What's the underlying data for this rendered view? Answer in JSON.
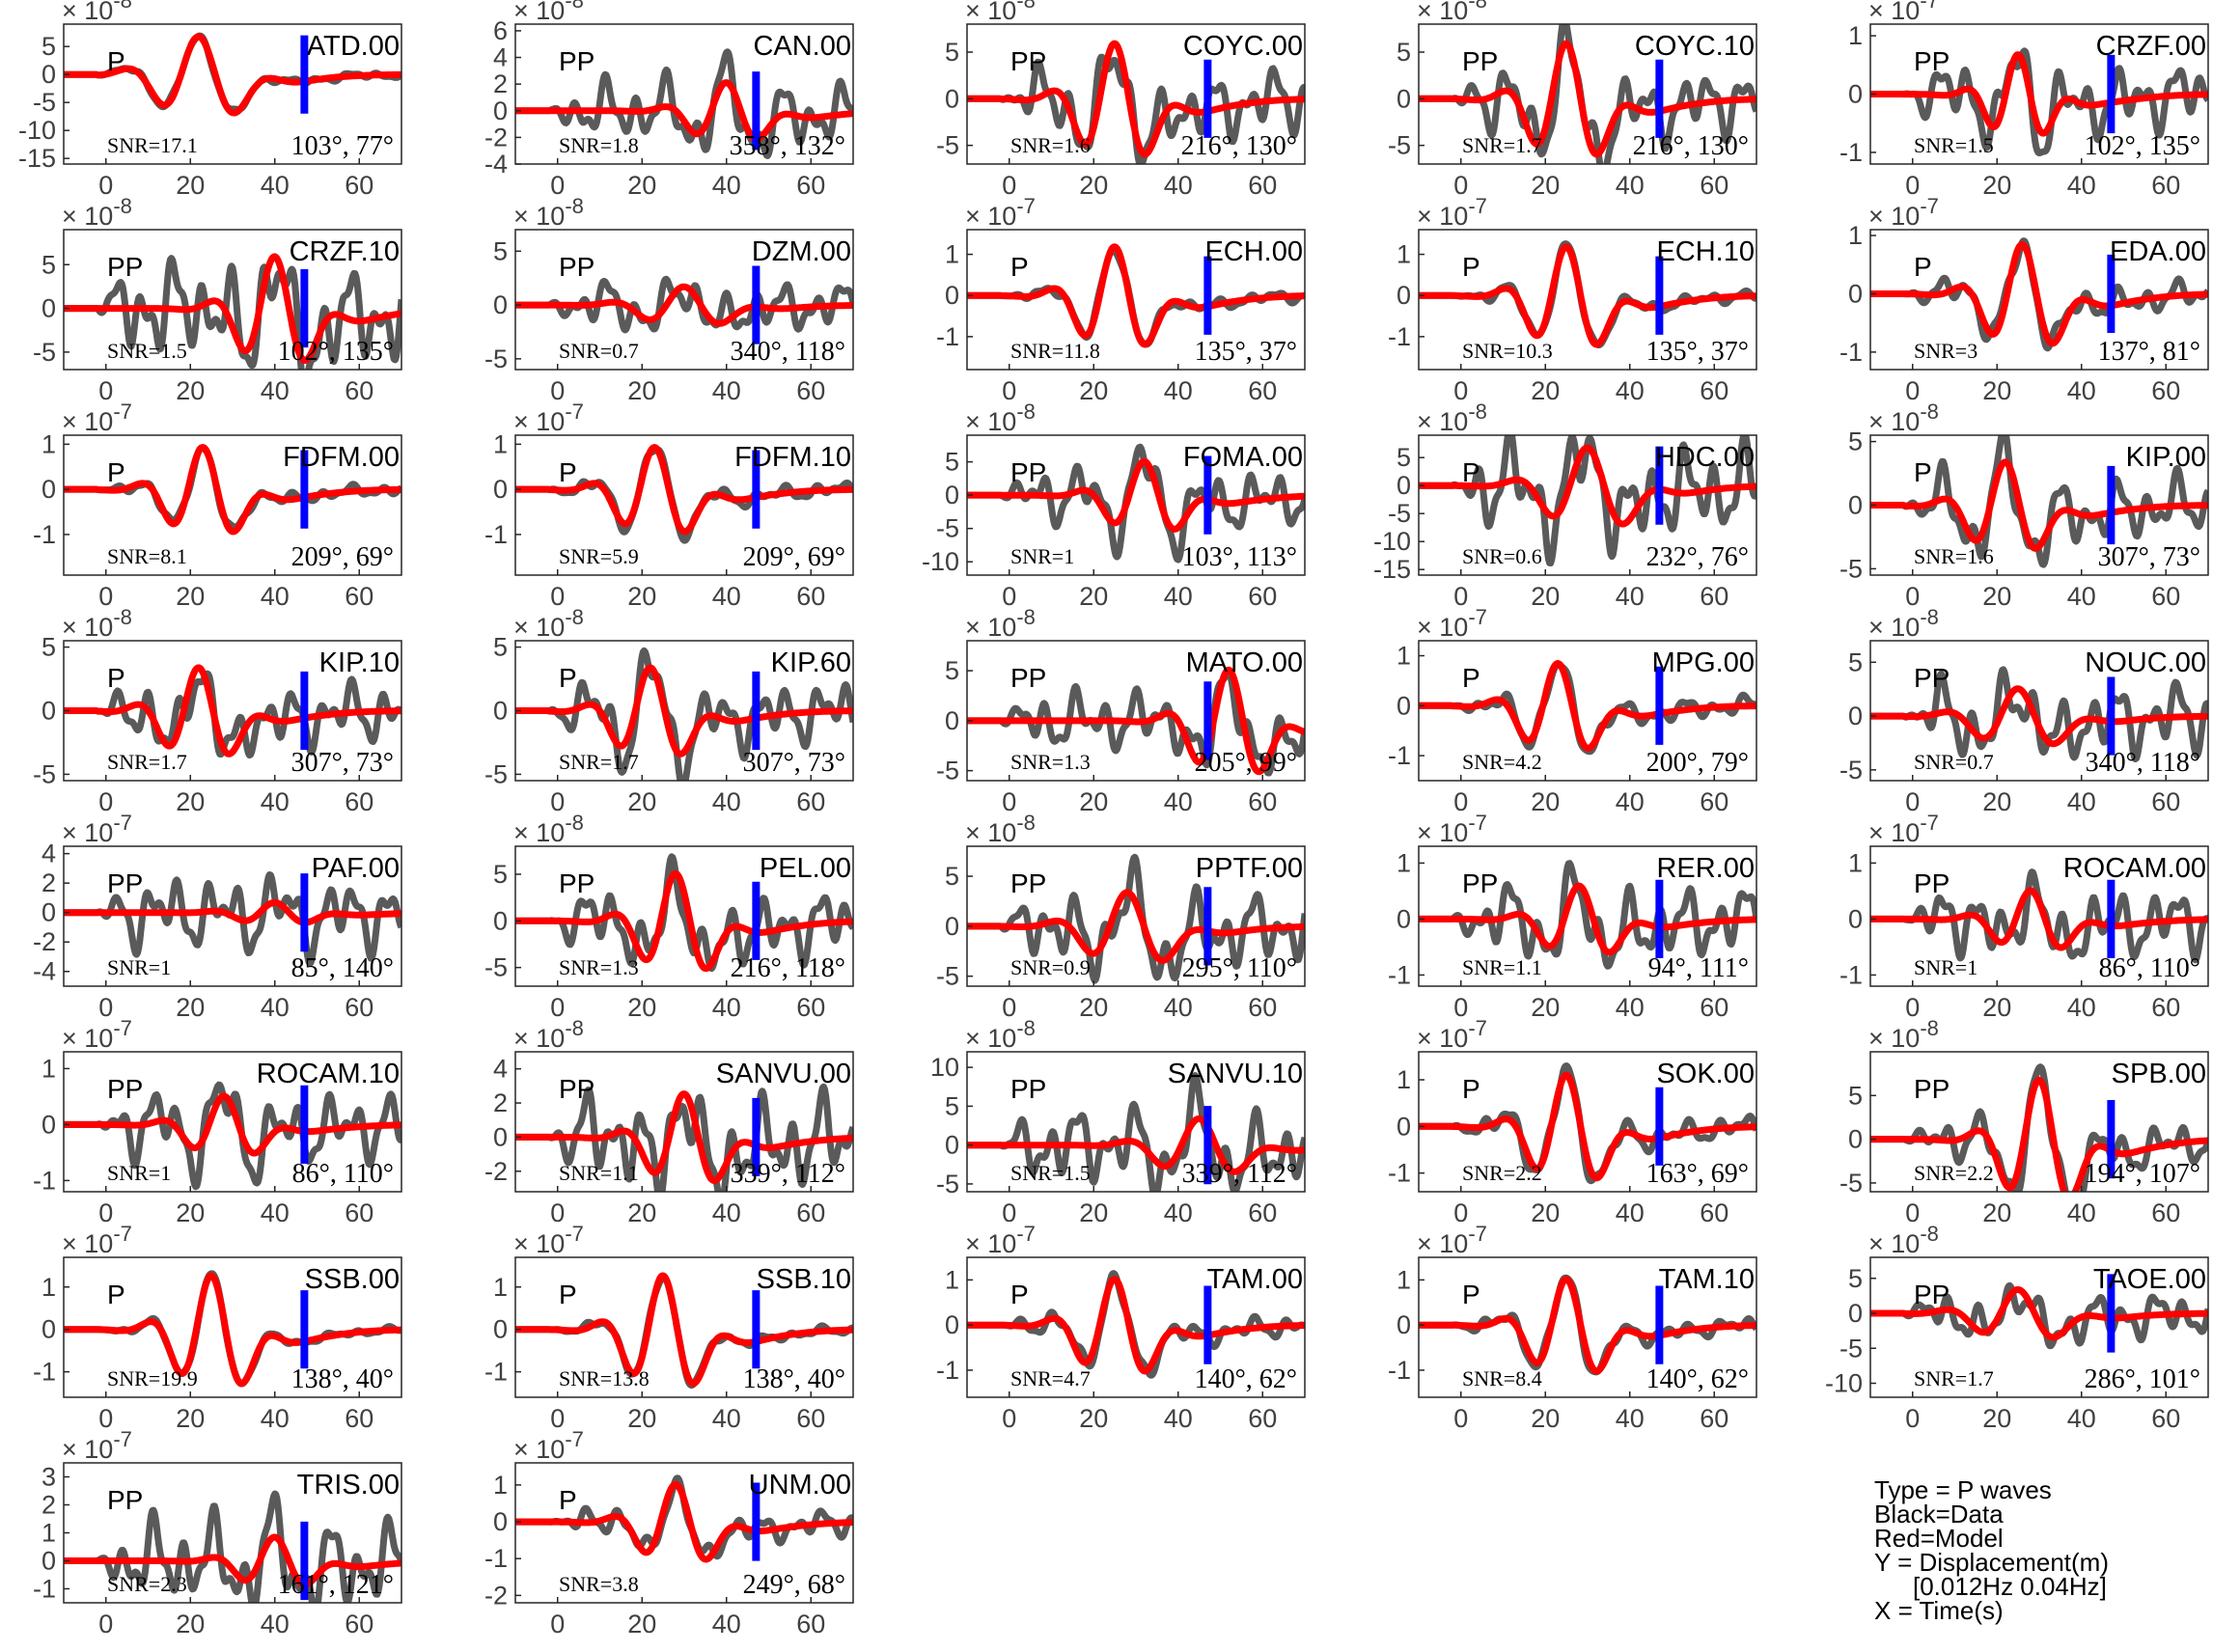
{
  "colors": {
    "data": "#5a5a5a",
    "model": "#ff0000",
    "marker": "#0000ff",
    "axis": "#262626",
    "text": "#000000"
  },
  "legend_note": {
    "type": "Type = P waves",
    "black": "Black=Data",
    "red": "Red=Model",
    "y": "Y = Displacement(m)",
    "band": "[0.012Hz 0.04Hz]",
    "x": "X = Time(s)"
  },
  "chart_data": {
    "type": "line",
    "xlim": [
      -10,
      70
    ],
    "xticks": [
      0,
      20,
      40,
      60
    ],
    "xtick_labels": [
      "0",
      "20",
      "40",
      "60"
    ],
    "series_names": [
      "Black=Data",
      "Red=Model"
    ],
    "marker_time": 47,
    "panels": [
      {
        "station": "ATD.00",
        "phase": "P",
        "snr": "SNR=17.1",
        "azimuth": "103°, 77°",
        "exp": "-8",
        "yticks": [
          5,
          0,
          -5,
          -10,
          -15
        ],
        "ylim": [
          -16,
          9
        ],
        "amp": 8,
        "tpk": 22,
        "tw": 7,
        "noise": 0.08
      },
      {
        "station": "CAN.00",
        "phase": "PP",
        "snr": "SNR=1.8",
        "azimuth": "358°, 132°",
        "exp": "-8",
        "yticks": [
          6,
          4,
          2,
          0,
          -2,
          -4
        ],
        "ylim": [
          -4,
          6.5
        ],
        "amp": 2.5,
        "tpk": 40,
        "tw": 6,
        "noise": 0.9
      },
      {
        "station": "COYC.00",
        "phase": "PP",
        "snr": "SNR=1.6",
        "azimuth": "216°, 130°",
        "exp": "-8",
        "yticks": [
          5,
          0,
          -5
        ],
        "ylim": [
          -7,
          8
        ],
        "amp": 7,
        "tpk": 25,
        "tw": 6,
        "noise": 0.5
      },
      {
        "station": "COYC.10",
        "phase": "PP",
        "snr": "SNR=1.7",
        "azimuth": "216°, 130°",
        "exp": "-8",
        "yticks": [
          5,
          0,
          -5
        ],
        "ylim": [
          -7,
          8
        ],
        "amp": 7,
        "tpk": 25,
        "tw": 6,
        "noise": 0.5
      },
      {
        "station": "CRZF.00",
        "phase": "PP",
        "snr": "SNR=1.5",
        "azimuth": "102°, 135°",
        "exp": "-7",
        "yticks": [
          1,
          0,
          -1
        ],
        "ylim": [
          -1.2,
          1.2
        ],
        "amp": 0.8,
        "tpk": 25,
        "tw": 5,
        "noise": 0.7
      },
      {
        "station": "CRZF.10",
        "phase": "PP",
        "snr": "SNR=1.5",
        "azimuth": "102°, 135°",
        "exp": "-8",
        "yticks": [
          5,
          0,
          -5
        ],
        "ylim": [
          -7,
          9
        ],
        "amp": 7,
        "tpk": 40,
        "tw": 6,
        "noise": 0.8
      },
      {
        "station": "DZM.00",
        "phase": "PP",
        "snr": "SNR=0.7",
        "azimuth": "340°, 118°",
        "exp": "-8",
        "yticks": [
          5,
          0,
          -5
        ],
        "ylim": [
          -6,
          7
        ],
        "amp": 2,
        "tpk": 30,
        "tw": 7,
        "noise": 1.1
      },
      {
        "station": "ECH.00",
        "phase": "P",
        "snr": "SNR=11.8",
        "azimuth": "135°, 37°",
        "exp": "-7",
        "yticks": [
          1,
          0,
          -1
        ],
        "ylim": [
          -1.8,
          1.6
        ],
        "amp": 1.4,
        "tpk": 25,
        "tw": 6,
        "noise": 0.1
      },
      {
        "station": "ECH.10",
        "phase": "P",
        "snr": "SNR=10.3",
        "azimuth": "135°, 37°",
        "exp": "-7",
        "yticks": [
          1,
          0,
          -1
        ],
        "ylim": [
          -1.8,
          1.6
        ],
        "amp": 1.4,
        "tpk": 25,
        "tw": 6,
        "noise": 0.1
      },
      {
        "station": "EDA.00",
        "phase": "P",
        "snr": "SNR=3",
        "azimuth": "137°, 81°",
        "exp": "-7",
        "yticks": [
          1,
          0,
          -1
        ],
        "ylim": [
          -1.3,
          1.1
        ],
        "amp": 1,
        "tpk": 26,
        "tw": 6,
        "noise": 0.25
      },
      {
        "station": "FDFM.00",
        "phase": "P",
        "snr": "SNR=8.1",
        "azimuth": "209°, 69°",
        "exp": "-7",
        "yticks": [
          1,
          0,
          -1
        ],
        "ylim": [
          -1.9,
          1.2
        ],
        "amp": 1.1,
        "tpk": 23,
        "tw": 6,
        "noise": 0.12
      },
      {
        "station": "FDFM.10",
        "phase": "P",
        "snr": "SNR=5.9",
        "azimuth": "209°, 69°",
        "exp": "-7",
        "yticks": [
          1,
          0,
          -1
        ],
        "ylim": [
          -1.9,
          1.2
        ],
        "amp": 1.1,
        "tpk": 23,
        "tw": 6,
        "noise": 0.15
      },
      {
        "station": "FOMA.00",
        "phase": "PP",
        "snr": "SNR=1",
        "azimuth": "103°, 113°",
        "exp": "-8",
        "yticks": [
          5,
          0,
          -5,
          -10
        ],
        "ylim": [
          -12,
          9
        ],
        "amp": 6,
        "tpk": 32,
        "tw": 6,
        "noise": 0.7
      },
      {
        "station": "HDC.00",
        "phase": "P",
        "snr": "SNR=0.6",
        "azimuth": "232°, 76°",
        "exp": "-8",
        "yticks": [
          5,
          0,
          -5,
          -10,
          -15
        ],
        "ylim": [
          -16,
          9
        ],
        "amp": 8,
        "tpk": 30,
        "tw": 7,
        "noise": 1
      },
      {
        "station": "KIP.00",
        "phase": "P",
        "snr": "SNR=1.6",
        "azimuth": "307°, 73°",
        "exp": "-8",
        "yticks": [
          5,
          0,
          -5
        ],
        "ylim": [
          -5.5,
          5.5
        ],
        "amp": 4,
        "tpk": 22,
        "tw": 6,
        "noise": 0.6
      },
      {
        "station": "KIP.10",
        "phase": "P",
        "snr": "SNR=1.7",
        "azimuth": "307°, 73°",
        "exp": "-8",
        "yticks": [
          5,
          0,
          -5
        ],
        "ylim": [
          -5.5,
          5.5
        ],
        "amp": 4,
        "tpk": 22,
        "tw": 6,
        "noise": 0.6
      },
      {
        "station": "KIP.60",
        "phase": "P",
        "snr": "SNR=1.7",
        "azimuth": "307°, 73°",
        "exp": "-8",
        "yticks": [
          5,
          0,
          -5
        ],
        "ylim": [
          -5.5,
          5.5
        ],
        "amp": 4,
        "tpk": 22,
        "tw": 6,
        "noise": 0.6
      },
      {
        "station": "MATO.00",
        "phase": "PP",
        "snr": "SNR=1.3",
        "azimuth": "205°, 99°",
        "exp": "-8",
        "yticks": [
          5,
          0,
          -5
        ],
        "ylim": [
          -6,
          8
        ],
        "amp": 6,
        "tpk": 52,
        "tw": 6,
        "noise": 0.5
      },
      {
        "station": "MPG.00",
        "phase": "P",
        "snr": "SNR=4.2",
        "azimuth": "200°, 79°",
        "exp": "-7",
        "yticks": [
          1,
          0,
          -1
        ],
        "ylim": [
          -1.5,
          1.3
        ],
        "amp": 1,
        "tpk": 23,
        "tw": 6,
        "noise": 0.2
      },
      {
        "station": "NOUC.00",
        "phase": "PP",
        "snr": "SNR=0.7",
        "azimuth": "340°, 118°",
        "exp": "-8",
        "yticks": [
          5,
          0,
          -5
        ],
        "ylim": [
          -6,
          7
        ],
        "amp": 3,
        "tpk": 25,
        "tw": 7,
        "noise": 1.1
      },
      {
        "station": "PAF.00",
        "phase": "PP",
        "snr": "SNR=1",
        "azimuth": "85°, 140°",
        "exp": "-7",
        "yticks": [
          4,
          2,
          0,
          -2,
          -4
        ],
        "ylim": [
          -5,
          4.5
        ],
        "amp": 0.8,
        "tpk": 40,
        "tw": 6,
        "noise": 3
      },
      {
        "station": "PEL.00",
        "phase": "PP",
        "snr": "SNR=1.3",
        "azimuth": "216°, 118°",
        "exp": "-8",
        "yticks": [
          5,
          0,
          -5
        ],
        "ylim": [
          -7,
          8
        ],
        "amp": 6,
        "tpk": 28,
        "tw": 6,
        "noise": 0.6
      },
      {
        "station": "PPTF.00",
        "phase": "PP",
        "snr": "SNR=0.9",
        "azimuth": "295°, 110°",
        "exp": "-8",
        "yticks": [
          5,
          0,
          -5
        ],
        "ylim": [
          -6,
          8
        ],
        "amp": 4,
        "tpk": 28,
        "tw": 7,
        "noise": 0.9
      },
      {
        "station": "RER.00",
        "phase": "PP",
        "snr": "SNR=1.1",
        "azimuth": "94°, 111°",
        "exp": "-7",
        "yticks": [
          1,
          0,
          -1
        ],
        "ylim": [
          -1.2,
          1.3
        ],
        "amp": 0.7,
        "tpk": 28,
        "tw": 6,
        "noise": 0.9
      },
      {
        "station": "ROCAM.00",
        "phase": "PP",
        "snr": "SNR=1",
        "azimuth": "86°, 110°",
        "exp": "-7",
        "yticks": [
          1,
          0,
          -1
        ],
        "ylim": [
          -1.2,
          1.3
        ],
        "amp": 0.6,
        "tpk": 28,
        "tw": 6,
        "noise": 1
      },
      {
        "station": "ROCAM.10",
        "phase": "PP",
        "snr": "SNR=1",
        "azimuth": "86°, 110°",
        "exp": "-7",
        "yticks": [
          1,
          0,
          -1
        ],
        "ylim": [
          -1.2,
          1.3
        ],
        "amp": 0.6,
        "tpk": 28,
        "tw": 6,
        "noise": 1
      },
      {
        "station": "SANVU.00",
        "phase": "PP",
        "snr": "SNR=1.1",
        "azimuth": "339°, 112°",
        "exp": "-8",
        "yticks": [
          4,
          2,
          0,
          -2
        ],
        "ylim": [
          -3.2,
          5
        ],
        "amp": 3,
        "tpk": 30,
        "tw": 6,
        "noise": 0.9
      },
      {
        "station": "SANVU.10",
        "phase": "PP",
        "snr": "SNR=1.5",
        "azimuth": "339°, 112°",
        "exp": "-8",
        "yticks": [
          10,
          5,
          0,
          -5
        ],
        "ylim": [
          -6,
          12
        ],
        "amp": 4,
        "tpk": 45,
        "tw": 7,
        "noise": 1.2
      },
      {
        "station": "SOK.00",
        "phase": "P",
        "snr": "SNR=2.2",
        "azimuth": "163°, 69°",
        "exp": "-7",
        "yticks": [
          1,
          0,
          -1
        ],
        "ylim": [
          -1.4,
          1.6
        ],
        "amp": 1.3,
        "tpk": 25,
        "tw": 6,
        "noise": 0.2
      },
      {
        "station": "SPB.00",
        "phase": "PP",
        "snr": "SNR=2.2",
        "azimuth": "194°, 107°",
        "exp": "-8",
        "yticks": [
          5,
          0,
          -5
        ],
        "ylim": [
          -6,
          10
        ],
        "amp": 8,
        "tpk": 30,
        "tw": 6,
        "noise": 0.3
      },
      {
        "station": "SSB.00",
        "phase": "P",
        "snr": "SNR=19.9",
        "azimuth": "138°, 40°",
        "exp": "-7",
        "yticks": [
          1,
          0,
          -1
        ],
        "ylim": [
          -1.6,
          1.7
        ],
        "amp": 1.5,
        "tpk": 25,
        "tw": 6,
        "noise": 0.05
      },
      {
        "station": "SSB.10",
        "phase": "P",
        "snr": "SNR=13.8",
        "azimuth": "138°, 40°",
        "exp": "-7",
        "yticks": [
          1,
          0,
          -1
        ],
        "ylim": [
          -1.6,
          1.7
        ],
        "amp": 1.5,
        "tpk": 25,
        "tw": 6,
        "noise": 0.07
      },
      {
        "station": "TAM.00",
        "phase": "P",
        "snr": "SNR=4.7",
        "azimuth": "140°, 62°",
        "exp": "-7",
        "yticks": [
          1,
          0,
          -1
        ],
        "ylim": [
          -1.6,
          1.5
        ],
        "amp": 1.2,
        "tpk": 25,
        "tw": 6,
        "noise": 0.2
      },
      {
        "station": "TAM.10",
        "phase": "P",
        "snr": "SNR=8.4",
        "azimuth": "140°, 62°",
        "exp": "-7",
        "yticks": [
          1,
          0,
          -1
        ],
        "ylim": [
          -1.6,
          1.5
        ],
        "amp": 1.2,
        "tpk": 25,
        "tw": 6,
        "noise": 0.15
      },
      {
        "station": "TAOE.00",
        "phase": "PP",
        "snr": "SNR=1.7",
        "azimuth": "286°, 101°",
        "exp": "-8",
        "yticks": [
          5,
          0,
          -5,
          -10
        ],
        "ylim": [
          -12,
          8
        ],
        "amp": 4,
        "tpk": 25,
        "tw": 7,
        "noise": 0.8
      },
      {
        "station": "TRIS.00",
        "phase": "PP",
        "snr": "SNR=2.3",
        "azimuth": "161°, 121°",
        "exp": "-7",
        "yticks": [
          3,
          2,
          1,
          0,
          -1
        ],
        "ylim": [
          -1.5,
          3.5
        ],
        "amp": 1,
        "tpk": 40,
        "tw": 6,
        "noise": 1.5
      },
      {
        "station": "UNM.00",
        "phase": "P",
        "snr": "SNR=3.8",
        "azimuth": "249°, 68°",
        "exp": "-7",
        "yticks": [
          1,
          0,
          -1,
          -2
        ],
        "ylim": [
          -2.2,
          1.6
        ],
        "amp": 1.2,
        "tpk": 28,
        "tw": 6,
        "noise": 0.3
      }
    ]
  }
}
